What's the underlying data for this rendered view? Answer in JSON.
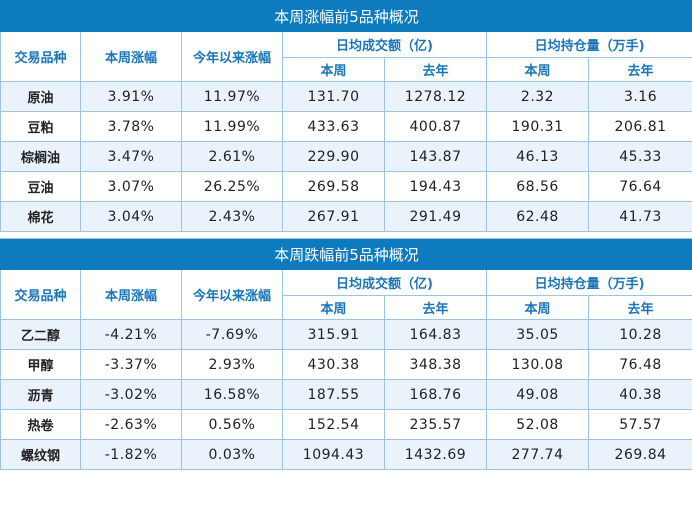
{
  "gainers": {
    "title": "本周涨幅前5品种概况",
    "headers": {
      "variety": "交易品种",
      "week_change": "本周涨幅",
      "ytd_change": "今年以来涨幅",
      "avg_turnover": "日均成交额（亿)",
      "avg_open_interest": "日均持仓量（万手)",
      "this_week": "本周",
      "last_year": "去年"
    },
    "rows": [
      {
        "name": "原油",
        "week": "3.91%",
        "ytd": "11.97%",
        "turnover_week": "131.70",
        "turnover_last": "1278.12",
        "oi_week": "2.32",
        "oi_last": "3.16"
      },
      {
        "name": "豆粕",
        "week": "3.78%",
        "ytd": "11.99%",
        "turnover_week": "433.63",
        "turnover_last": "400.87",
        "oi_week": "190.31",
        "oi_last": "206.81"
      },
      {
        "name": "棕榈油",
        "week": "3.47%",
        "ytd": "2.61%",
        "turnover_week": "229.90",
        "turnover_last": "143.87",
        "oi_week": "46.13",
        "oi_last": "45.33"
      },
      {
        "name": "豆油",
        "week": "3.07%",
        "ytd": "26.25%",
        "turnover_week": "269.58",
        "turnover_last": "194.43",
        "oi_week": "68.56",
        "oi_last": "76.64"
      },
      {
        "name": "棉花",
        "week": "3.04%",
        "ytd": "2.43%",
        "turnover_week": "267.91",
        "turnover_last": "291.49",
        "oi_week": "62.48",
        "oi_last": "41.73"
      }
    ]
  },
  "losers": {
    "title": "本周跌幅前5品种概况",
    "headers": {
      "variety": "交易品种",
      "week_change": "本周涨幅",
      "ytd_change": "今年以来涨幅",
      "avg_turnover": "日均成交额（亿)",
      "avg_open_interest": "日均持仓量（万手)",
      "this_week": "本周",
      "last_year": "去年"
    },
    "rows": [
      {
        "name": "乙二醇",
        "week": "-4.21%",
        "ytd": "-7.69%",
        "turnover_week": "315.91",
        "turnover_last": "164.83",
        "oi_week": "35.05",
        "oi_last": "10.28"
      },
      {
        "name": "甲醇",
        "week": "-3.37%",
        "ytd": "2.93%",
        "turnover_week": "430.38",
        "turnover_last": "348.38",
        "oi_week": "130.08",
        "oi_last": "76.48"
      },
      {
        "name": "沥青",
        "week": "-3.02%",
        "ytd": "16.58%",
        "turnover_week": "187.55",
        "turnover_last": "168.76",
        "oi_week": "49.08",
        "oi_last": "40.38"
      },
      {
        "name": "热卷",
        "week": "-2.63%",
        "ytd": "0.56%",
        "turnover_week": "152.54",
        "turnover_last": "235.57",
        "oi_week": "52.08",
        "oi_last": "57.57"
      },
      {
        "name": "螺纹钢",
        "week": "-1.82%",
        "ytd": "0.03%",
        "turnover_week": "1094.43",
        "turnover_last": "1432.69",
        "oi_week": "277.74",
        "oi_last": "269.84"
      }
    ]
  }
}
